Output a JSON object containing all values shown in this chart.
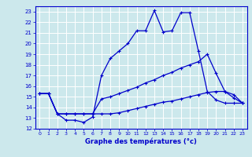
{
  "xlabel": "Graphe des températures (°c)",
  "bg_color": "#cce8ec",
  "line_color": "#0000cc",
  "grid_color": "#ffffff",
  "xlim": [
    -0.5,
    23.5
  ],
  "ylim": [
    12,
    23.5
  ],
  "xticks": [
    0,
    1,
    2,
    3,
    4,
    5,
    6,
    7,
    8,
    9,
    10,
    11,
    12,
    13,
    14,
    15,
    16,
    17,
    18,
    19,
    20,
    21,
    22,
    23
  ],
  "yticks": [
    12,
    13,
    14,
    15,
    16,
    17,
    18,
    19,
    20,
    21,
    22,
    23
  ],
  "series": [
    {
      "x": [
        0,
        1,
        2,
        3,
        4,
        5,
        6,
        7,
        8,
        9,
        10,
        11,
        12,
        13,
        14,
        15,
        16,
        17,
        18,
        19,
        20,
        21,
        22,
        23
      ],
      "y": [
        15.3,
        15.3,
        13.4,
        12.8,
        12.8,
        12.6,
        13.1,
        17.0,
        18.6,
        19.3,
        20.0,
        21.2,
        21.2,
        23.1,
        21.1,
        21.2,
        22.9,
        22.9,
        19.3,
        15.5,
        14.7,
        14.4,
        14.4,
        14.4
      ]
    },
    {
      "x": [
        0,
        1,
        2,
        3,
        4,
        5,
        6,
        7,
        8,
        9,
        10,
        11,
        12,
        13,
        14,
        15,
        16,
        17,
        18,
        19,
        20,
        21,
        22,
        23
      ],
      "y": [
        15.3,
        15.3,
        13.4,
        13.4,
        13.4,
        13.4,
        13.4,
        14.8,
        15.0,
        15.3,
        15.6,
        15.9,
        16.3,
        16.6,
        17.0,
        17.3,
        17.7,
        18.0,
        18.3,
        19.0,
        17.2,
        15.5,
        14.9,
        14.4
      ]
    },
    {
      "x": [
        0,
        1,
        2,
        3,
        4,
        5,
        6,
        7,
        8,
        9,
        10,
        11,
        12,
        13,
        14,
        15,
        16,
        17,
        18,
        19,
        20,
        21,
        22,
        23
      ],
      "y": [
        15.3,
        15.3,
        13.4,
        13.4,
        13.4,
        13.4,
        13.4,
        13.4,
        13.4,
        13.5,
        13.7,
        13.9,
        14.1,
        14.3,
        14.5,
        14.6,
        14.8,
        15.0,
        15.2,
        15.4,
        15.5,
        15.5,
        15.2,
        14.4
      ]
    }
  ]
}
